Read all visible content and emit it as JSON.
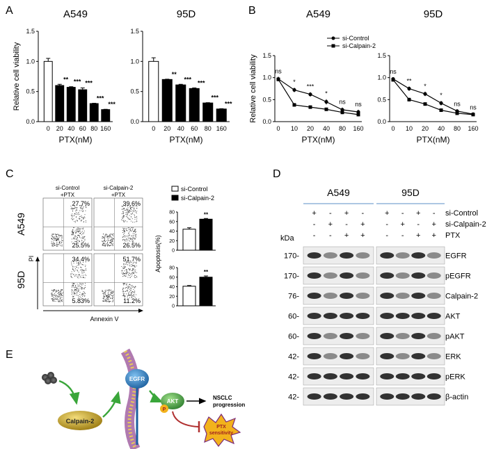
{
  "panels": {
    "A": {
      "label": "A",
      "charts": [
        {
          "title": "A549",
          "type": "bar",
          "categories": [
            "0",
            "20",
            "40",
            "60",
            "80",
            "160"
          ],
          "values": [
            1.0,
            0.6,
            0.57,
            0.53,
            0.3,
            0.2
          ],
          "errors": [
            0.05,
            0.02,
            0.01,
            0.03,
            0.005,
            0.005
          ],
          "sig": [
            "",
            "**",
            "***",
            "***",
            "***",
            "***"
          ],
          "ylabel": "Relative cell viability",
          "xlabel": "PTX(nM)",
          "yticks": [
            "0.0",
            "0.5",
            "1.0",
            "1.5"
          ],
          "ylim": [
            0,
            1.5
          ]
        },
        {
          "title": "95D",
          "type": "bar",
          "categories": [
            "0",
            "20",
            "40",
            "60",
            "80",
            "160"
          ],
          "values": [
            1.0,
            0.7,
            0.61,
            0.55,
            0.31,
            0.21
          ],
          "errors": [
            0.06,
            0.005,
            0.01,
            0.01,
            0.005,
            0.005
          ],
          "sig": [
            "",
            "**",
            "***",
            "***",
            "***",
            "***"
          ],
          "ylabel": "",
          "xlabel": "PTX(nM)",
          "yticks": [
            "0.0",
            "0.5",
            "1.0",
            "1.5"
          ],
          "ylim": [
            0,
            1.5
          ]
        }
      ]
    },
    "B": {
      "label": "B",
      "legend": [
        "si-Control",
        "si-Calpain-2"
      ],
      "charts": [
        {
          "title": "A549",
          "type": "line",
          "categories": [
            "0",
            "10",
            "20",
            "40",
            "80",
            "160"
          ],
          "series": [
            {
              "name": "si-Control",
              "values": [
                0.97,
                0.72,
                0.62,
                0.45,
                0.27,
                0.22
              ],
              "errors": [
                0.05,
                0.05,
                0.05,
                0.06,
                0.05,
                0.05
              ]
            },
            {
              "name": "si-Calpain-2",
              "values": [
                0.96,
                0.38,
                0.33,
                0.28,
                0.21,
                0.16
              ],
              "errors": [
                0.04,
                0.04,
                0.03,
                0.03,
                0.04,
                0.04
              ]
            }
          ],
          "sig": [
            "ns",
            "*",
            "***",
            "*",
            "ns",
            "ns"
          ],
          "ylabel": "Relative cell viability",
          "xlabel": "PTX(nM)",
          "yticks": [
            "0.0",
            "0.5",
            "1.0",
            "1.5"
          ],
          "ylim": [
            0,
            1.5
          ]
        },
        {
          "title": "95D",
          "type": "line",
          "categories": [
            "0",
            "10",
            "20",
            "40",
            "80",
            "160"
          ],
          "series": [
            {
              "name": "si-Control",
              "values": [
                0.97,
                0.75,
                0.63,
                0.42,
                0.24,
                0.17
              ],
              "errors": [
                0.04,
                0.05,
                0.05,
                0.05,
                0.04,
                0.03
              ]
            },
            {
              "name": "si-Calpain-2",
              "values": [
                0.95,
                0.5,
                0.4,
                0.26,
                0.19,
                0.16
              ],
              "errors": [
                0.04,
                0.04,
                0.03,
                0.03,
                0.03,
                0.03
              ]
            }
          ],
          "sig": [
            "ns",
            "**",
            "*",
            "*",
            "ns",
            "ns"
          ],
          "ylabel": "",
          "xlabel": "PTX(nM)",
          "yticks": [
            "0.0",
            "0.5",
            "1.0",
            "1.5"
          ],
          "ylim": [
            0,
            1.5
          ]
        }
      ]
    },
    "C": {
      "label": "C",
      "col_headers": [
        "si-Control\n+PTX",
        "si-Calpain-2\n+PTX"
      ],
      "row_labels": [
        "A549",
        "95D"
      ],
      "quadrants": [
        [
          {
            "ur": "27.7%",
            "lr": "25.5%"
          },
          {
            "ur": "39.6%",
            "lr": "26.5%"
          }
        ],
        [
          {
            "ur": "34.4%",
            "lr": "5.83%"
          },
          {
            "ur": "51.7%",
            "lr": "11.2%"
          }
        ]
      ],
      "y_axis": "PI",
      "x_axis": "Annexin V",
      "legend": [
        "si-Control",
        "si-Calpain-2"
      ],
      "bar_ylabel": "Apoptosis(%)",
      "bars": [
        {
          "values": [
            44,
            65
          ],
          "errors": [
            3,
            1.5
          ],
          "sig": "**",
          "yticks": [
            "0",
            "20",
            "40",
            "60",
            "80"
          ],
          "ylim": [
            0,
            80
          ]
        },
        {
          "values": [
            41,
            60
          ],
          "errors": [
            1.5,
            2.5
          ],
          "sig": "**",
          "yticks": [
            "0",
            "20",
            "40",
            "60",
            "80"
          ],
          "ylim": [
            0,
            80
          ]
        }
      ]
    },
    "D": {
      "label": "D",
      "groups": [
        "A549",
        "95D"
      ],
      "treatments": [
        {
          "name": "si-Control",
          "signs": [
            "+",
            "-",
            "+",
            "-",
            "+",
            "-",
            "+",
            "-"
          ]
        },
        {
          "name": "si-Calpain-2",
          "signs": [
            "-",
            "+",
            "-",
            "+",
            "-",
            "+",
            "-",
            "+"
          ]
        },
        {
          "name": "PTX",
          "signs": [
            "-",
            "-",
            "+",
            "+",
            "-",
            "-",
            "+",
            "+"
          ]
        }
      ],
      "kda_label": "kDa",
      "blots": [
        {
          "kda": "170-",
          "name": "EGFR"
        },
        {
          "kda": "170-",
          "name": "pEGFR"
        },
        {
          "kda": "76-",
          "name": "Calpain-2"
        },
        {
          "kda": "60-",
          "name": "AKT"
        },
        {
          "kda": "60-",
          "name": "pAKT"
        },
        {
          "kda": "42-",
          "name": "ERK"
        },
        {
          "kda": "42-",
          "name": "pERK"
        },
        {
          "kda": "42-",
          "name": "β-actin"
        }
      ]
    },
    "E": {
      "label": "E",
      "nodes": {
        "calpain": "Calpain-2",
        "egfr": "EGFR",
        "akt": "AKT",
        "p": "P",
        "outcome": "NSCLC\nprogression",
        "ptx": "PTX\nsensitivity"
      }
    }
  },
  "colors": {
    "bar_ctrl": "#ffffff",
    "bar_kd": "#000000",
    "divider": "#5b8fc7",
    "arrow": "#3aa63a",
    "inhibit": "#b03030",
    "calpain": "#c8a22a",
    "egfr": "#2f7fc4",
    "akt": "#4aa84a",
    "ptx": "#f2b21c",
    "membrane": "#b07ab0"
  }
}
